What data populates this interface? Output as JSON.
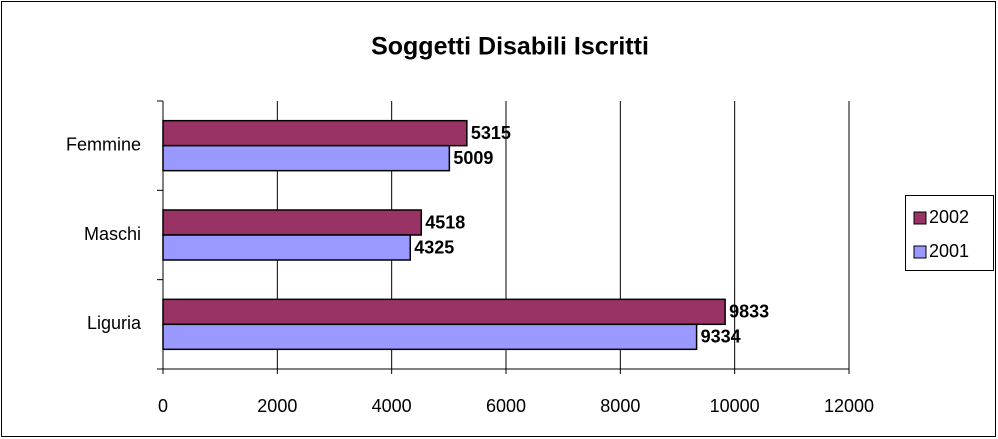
{
  "chart_data": {
    "type": "bar",
    "orientation": "horizontal",
    "title": "Soggetti Disabili Iscritti",
    "categories": [
      "Liguria",
      "Maschi",
      "Femmine"
    ],
    "series": [
      {
        "name": "2002",
        "color": "#993366",
        "values": [
          9833,
          4518,
          5315
        ]
      },
      {
        "name": "2001",
        "color": "#9999ff",
        "values": [
          9334,
          4325,
          5009
        ]
      }
    ],
    "xlim": [
      0,
      12000
    ],
    "xticks": [
      0,
      2000,
      4000,
      6000,
      8000,
      10000,
      12000
    ],
    "grid": true,
    "legend": "right"
  }
}
